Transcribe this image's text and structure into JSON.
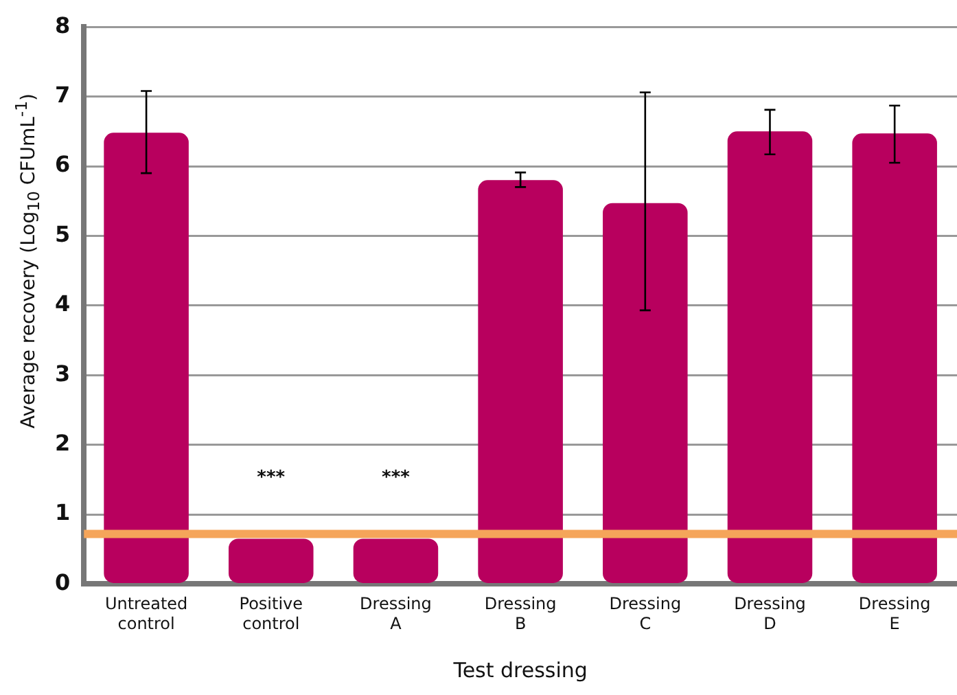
{
  "chart_data": {
    "type": "bar",
    "xlabel": "Test dressing",
    "ylabel": "Average recovery (Log$_{10}$ CFUmL$^{-1}$)",
    "categories": [
      "Untreated control",
      "Positive control",
      "Dressing A",
      "Dressing B",
      "Dressing C",
      "Dressing D",
      "Dressing E"
    ],
    "values": [
      6.48,
      0.65,
      0.65,
      5.8,
      5.47,
      6.5,
      6.47
    ],
    "errors": [
      [
        5.9,
        7.08
      ],
      null,
      null,
      [
        5.7,
        5.91
      ],
      [
        3.93,
        7.06
      ],
      [
        6.17,
        6.81
      ],
      [
        6.05,
        6.87
      ]
    ],
    "color": "#b8005e",
    "ylim": [
      0,
      8
    ],
    "yticks": [
      0,
      1,
      2,
      3,
      4,
      5,
      6,
      7,
      8
    ],
    "grid": "y",
    "ref_lines": [
      {
        "axis": "y",
        "value": 0.72,
        "color": "#f5a55a"
      }
    ],
    "annotations": [
      "***",
      "***"
    ]
  }
}
